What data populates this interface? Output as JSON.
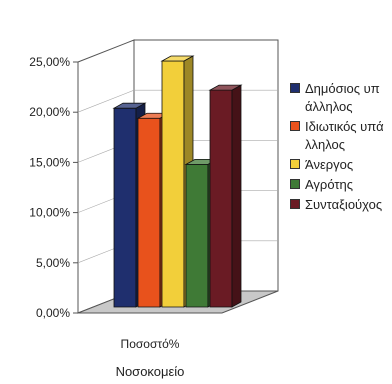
{
  "chart_data": {
    "type": "bar",
    "categories": [
      "Ποσοστό%"
    ],
    "xlabel": "Νοσοκομείο",
    "ylabel": "",
    "title": "",
    "ylim": [
      0,
      25
    ],
    "y_ticks": [
      "0,00%",
      "5,00%",
      "10,00%",
      "15,00%",
      "20,00%",
      "25,00%"
    ],
    "three_d": true,
    "legend_position": "right",
    "series": [
      {
        "name": "Δημόσιος υπάλληλος",
        "values": [
          20.4
        ],
        "color": "#1f2f6e"
      },
      {
        "name": "Ιδιωτικός υπάλληλος",
        "values": [
          19.4
        ],
        "color": "#e8521c"
      },
      {
        "name": "Άνεργος",
        "values": [
          25.1
        ],
        "color": "#f2cf3a"
      },
      {
        "name": "Αγρότης",
        "values": [
          14.8
        ],
        "color": "#3f7a36"
      },
      {
        "name": "Συνταξιούχος",
        "values": [
          22.2
        ],
        "color": "#6a1b24"
      }
    ]
  }
}
